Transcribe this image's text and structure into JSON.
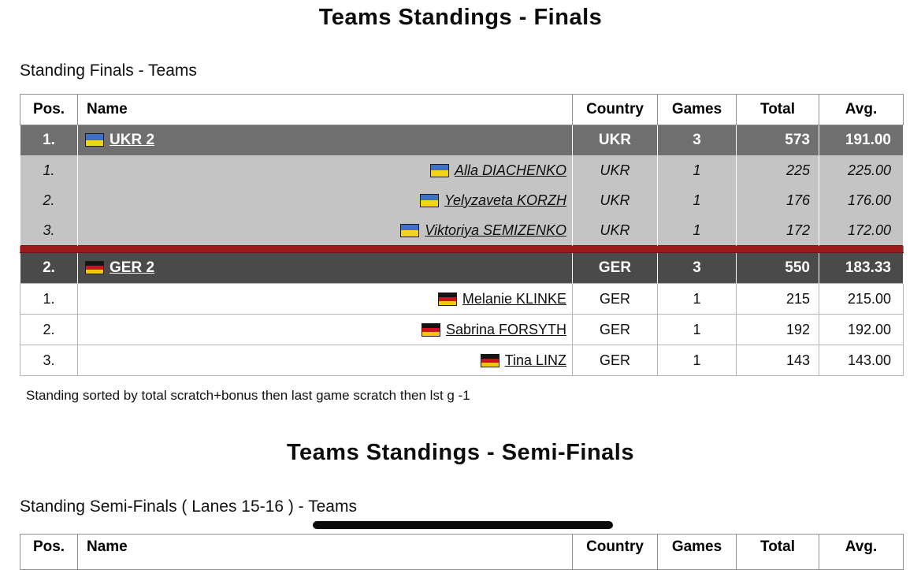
{
  "page": {
    "title_finals": "Teams Standings - Finals",
    "subtitle_finals": "Standing Finals - Teams",
    "sort_note": "Standing sorted by total scratch+bonus then last game scratch then lst g -1",
    "title_semifinals": "Teams Standings - Semi-Finals",
    "subtitle_semifinals": "Standing Semi-Finals ( Lanes 15-16 ) - Teams"
  },
  "columns": {
    "pos": "Pos.",
    "name": "Name",
    "country": "Country",
    "games": "Games",
    "total": "Total",
    "avg": "Avg."
  },
  "standings": {
    "teams": [
      {
        "pos": "1.",
        "name": "UKR 2",
        "flag": "ukraine-flag",
        "country": "UKR",
        "games": "3",
        "total": "573",
        "avg": "191.00",
        "players": [
          {
            "pos": "1.",
            "name": "Alla DIACHENKO",
            "country": "UKR",
            "games": "1",
            "total": "225",
            "avg": "225.00"
          },
          {
            "pos": "2.",
            "name": "Yelyzaveta KORZH",
            "country": "UKR",
            "games": "1",
            "total": "176",
            "avg": "176.00"
          },
          {
            "pos": "3.",
            "name": "Viktoriya SEMIZENKO",
            "country": "UKR",
            "games": "1",
            "total": "172",
            "avg": "172.00"
          }
        ]
      },
      {
        "pos": "2.",
        "name": "GER 2",
        "flag": "germany-flag",
        "country": "GER",
        "games": "3",
        "total": "550",
        "avg": "183.33",
        "players": [
          {
            "pos": "1.",
            "name": "Melanie KLINKE",
            "country": "GER",
            "games": "1",
            "total": "215",
            "avg": "215.00"
          },
          {
            "pos": "2.",
            "name": "Sabrina FORSYTH",
            "country": "GER",
            "games": "1",
            "total": "192",
            "avg": "192.00"
          },
          {
            "pos": "3.",
            "name": "Tina LINZ",
            "country": "GER",
            "games": "1",
            "total": "143",
            "avg": "143.00"
          }
        ]
      }
    ]
  },
  "colors": {
    "team_row_1_bg": "#6f6f6f",
    "team_row_2_bg": "#4a4a4a",
    "player_group_1_bg": "#c4c4c4",
    "player_group_2_bg": "#ffffff",
    "red_divider": "#9c1a1a",
    "black_bar": "#0c0c0c",
    "ukraine_flag_blue": "#3e70c8",
    "ukraine_flag_yellow": "#f2d41d",
    "germany_flag_black": "#141414",
    "germany_flag_red": "#cf1317",
    "germany_flag_gold": "#f3c70e"
  }
}
